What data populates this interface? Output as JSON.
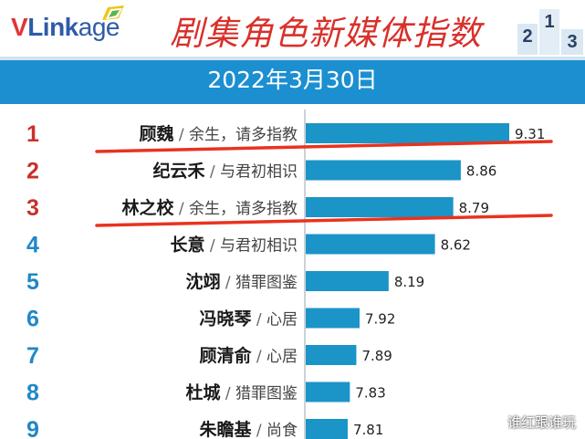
{
  "header": {
    "logo_v": "V",
    "logo_link": "Link",
    "logo_age": "age",
    "title": "剧集角色新媒体指数",
    "podium": [
      "2",
      "1",
      "3"
    ]
  },
  "date": "2022年3月30日",
  "watermark": "谁红跟谁玩",
  "colors": {
    "bar": "#1b94c8",
    "rank_red": "#c9302c",
    "rank_blue": "#1f88c8",
    "header_bar": "#1c8fd0",
    "underline": "#e8331e"
  },
  "chart_data": {
    "type": "bar",
    "orientation": "horizontal",
    "title": "剧集角色新媒体指数",
    "subtitle": "2022年3月30日",
    "ranks": [
      "1",
      "2",
      "3",
      "4",
      "5",
      "6",
      "7",
      "8",
      "9"
    ],
    "names": [
      "顾魏",
      "纪云禾",
      "林之校",
      "长意",
      "沈翊",
      "冯晓琴",
      "顾清俞",
      "杜城",
      "朱瞻基"
    ],
    "shows": [
      "余生，请多指教",
      "与君初相识",
      "余生，请多指教",
      "与君初相识",
      "猎罪图鉴",
      "心居",
      "心居",
      "猎罪图鉴",
      "尚食"
    ],
    "values": [
      9.31,
      8.86,
      8.79,
      8.62,
      8.19,
      7.92,
      7.89,
      7.83,
      7.81
    ],
    "value_labels": [
      "9.31",
      "8.86",
      "8.79",
      "8.62",
      "8.19",
      "7.92",
      "7.89",
      "7.83",
      "7.81"
    ],
    "separator": "/",
    "red_ranks": [
      1,
      2,
      3
    ],
    "underlined_ranks": [
      1,
      3
    ]
  }
}
